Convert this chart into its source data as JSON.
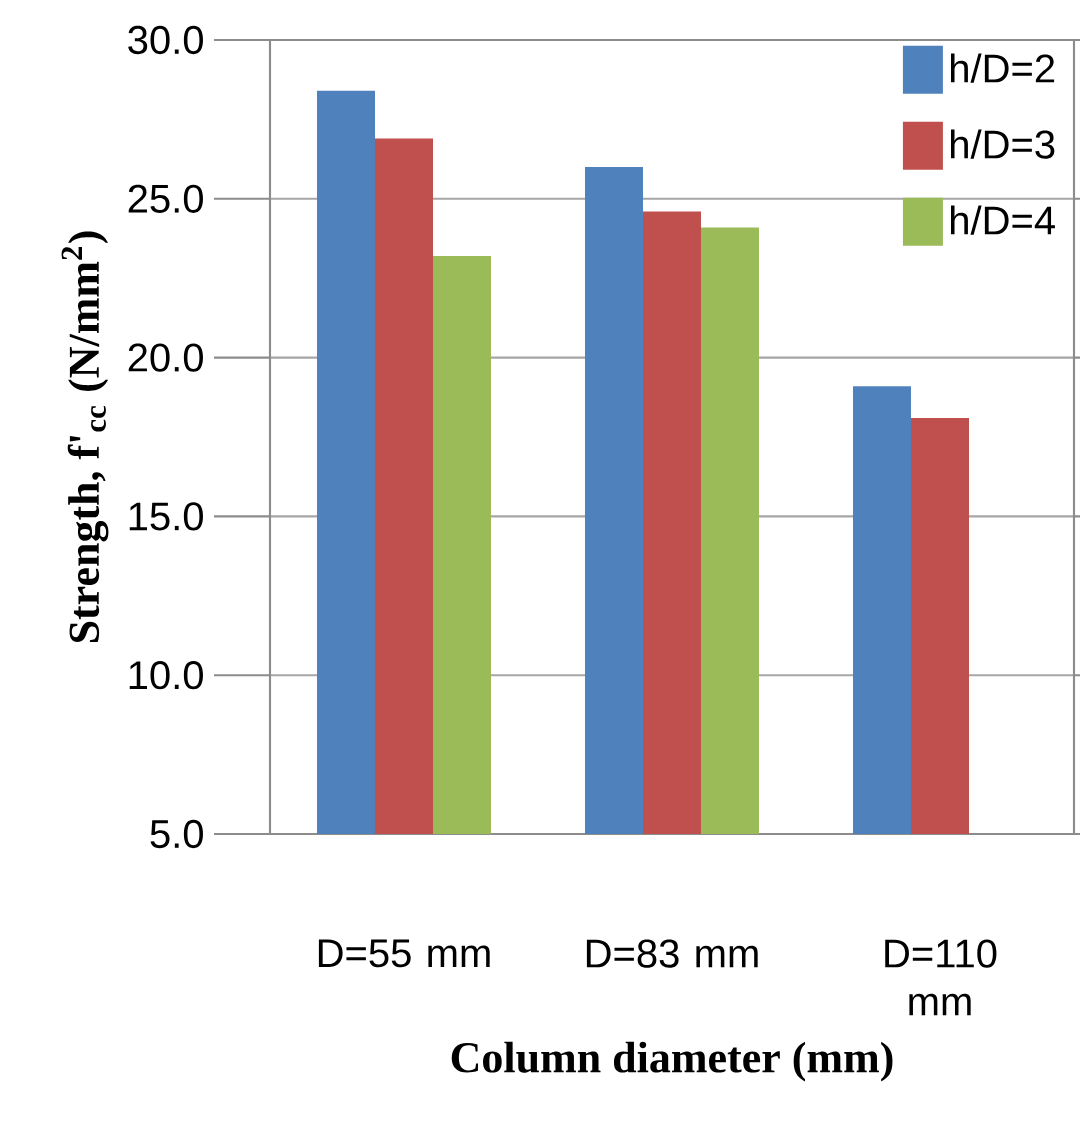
{
  "chart_data": {
    "type": "bar",
    "xlabel": "Column diameter (mm)",
    "ylabel": "Strength, f'$_{cc}$ (N/mm$^{2}$)",
    "categories": [
      "D=55 mm",
      "D=83 mm",
      "D=110 mm"
    ],
    "series": [
      {
        "name": "h/D=2",
        "color": "#4f81bd",
        "values": [
          28.4,
          26.0,
          19.1
        ]
      },
      {
        "name": "h/D=3",
        "color": "#c0504d",
        "values": [
          26.9,
          24.6,
          18.1
        ]
      },
      {
        "name": "h/D=4",
        "color": "#9bbb59",
        "values": [
          23.2,
          24.1,
          null
        ]
      }
    ],
    "ylim": [
      5,
      30
    ],
    "yticks": [
      {
        "value": 5,
        "label": "5.0"
      },
      {
        "value": 10,
        "label": "10.0"
      },
      {
        "value": 15,
        "label": "15.0"
      },
      {
        "value": 20,
        "label": "20.0"
      },
      {
        "value": 25,
        "label": "25.0"
      },
      {
        "value": 30,
        "label": "30.0"
      }
    ],
    "grid": "y",
    "legend": "top right"
  }
}
